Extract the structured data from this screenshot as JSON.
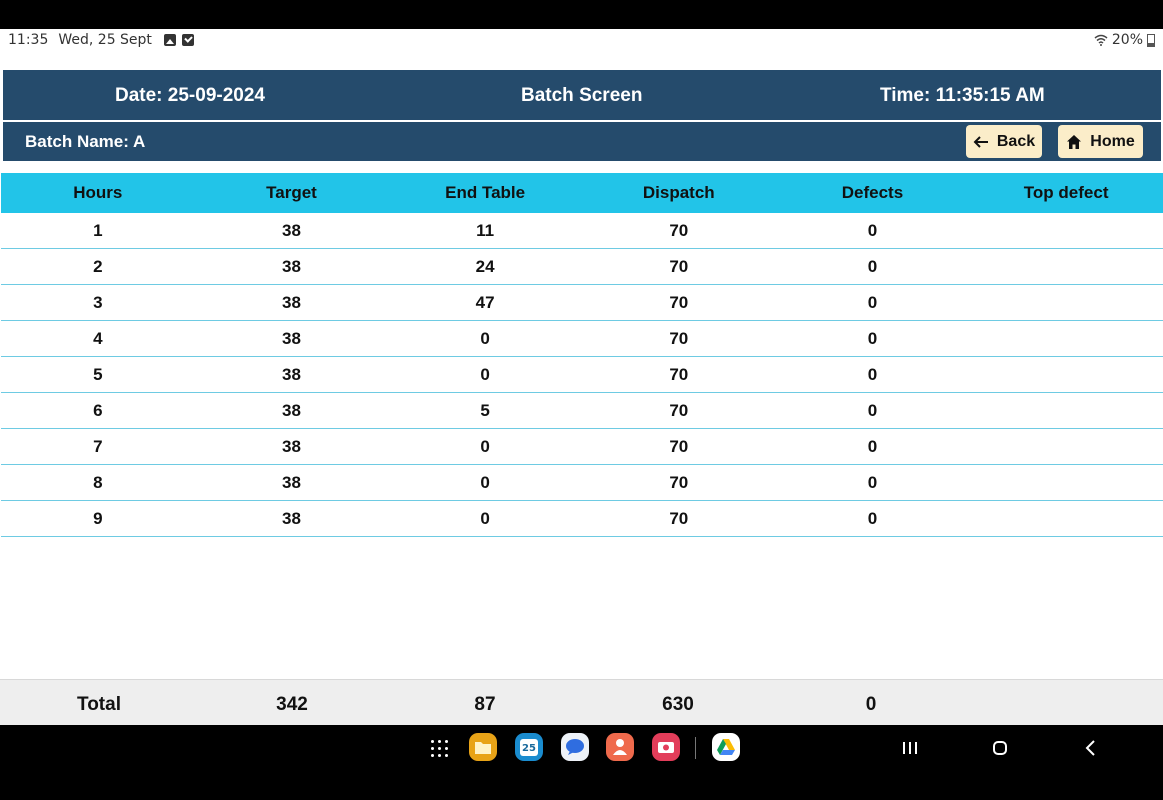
{
  "status_bar": {
    "time": "11:35",
    "date": "Wed, 25 Sept",
    "battery": "20%"
  },
  "header": {
    "date": "Date: 25-09-2024",
    "title": "Batch Screen",
    "time": "Time: 11:35:15 AM",
    "batch_name": "Batch Name: A",
    "back_label": "Back",
    "home_label": "Home"
  },
  "table": {
    "columns": [
      "Hours",
      "Target",
      "End Table",
      "Dispatch",
      "Defects",
      "Top defect"
    ],
    "rows": [
      [
        "1",
        "38",
        "11",
        "70",
        "0",
        ""
      ],
      [
        "2",
        "38",
        "24",
        "70",
        "0",
        ""
      ],
      [
        "3",
        "38",
        "47",
        "70",
        "0",
        ""
      ],
      [
        "4",
        "38",
        "0",
        "70",
        "0",
        ""
      ],
      [
        "5",
        "38",
        "0",
        "70",
        "0",
        ""
      ],
      [
        "6",
        "38",
        "5",
        "70",
        "0",
        ""
      ],
      [
        "7",
        "38",
        "0",
        "70",
        "0",
        ""
      ],
      [
        "8",
        "38",
        "0",
        "70",
        "0",
        ""
      ],
      [
        "9",
        "38",
        "0",
        "70",
        "0",
        ""
      ]
    ]
  },
  "total": {
    "label": "Total",
    "target": "342",
    "end_table": "87",
    "dispatch": "630",
    "defects": "0"
  },
  "colors": {
    "header_bg": "#254b6c",
    "table_header_bg": "#22c4e8",
    "button_bg": "#fbedc9",
    "row_border": "#6ecbe3"
  },
  "nav_bar": {
    "apps": [
      "apps-grid-icon",
      "my-files-icon",
      "calendar-icon",
      "messages-icon",
      "contacts-icon",
      "camera-icon",
      "google-drive-icon"
    ],
    "calendar_day": "25",
    "system": [
      "recents-icon",
      "home-icon",
      "back-icon"
    ]
  }
}
